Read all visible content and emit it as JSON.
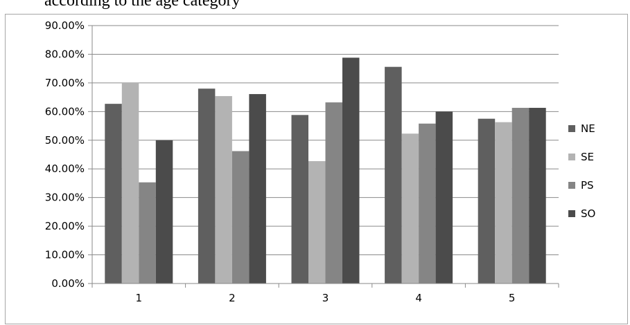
{
  "caption": "according to the age category",
  "chart_data": {
    "type": "bar",
    "categories": [
      "1",
      "2",
      "3",
      "4",
      "5"
    ],
    "series": [
      {
        "name": "NE",
        "color": "#5f5f5f",
        "values": [
          62.7,
          68.0,
          58.8,
          75.6,
          57.5
        ]
      },
      {
        "name": "SE",
        "color": "#b3b3b3",
        "values": [
          70.0,
          65.4,
          42.7,
          52.3,
          56.3
        ]
      },
      {
        "name": "PS",
        "color": "#858585",
        "values": [
          35.3,
          46.2,
          63.2,
          55.8,
          61.3
        ]
      },
      {
        "name": "SO",
        "color": "#4b4b4b",
        "values": [
          50.0,
          66.1,
          78.8,
          60.0,
          61.3
        ]
      }
    ],
    "ylim": [
      0,
      90
    ],
    "yticks": [
      "0.00%",
      "10.00%",
      "20.00%",
      "30.00%",
      "40.00%",
      "50.00%",
      "60.00%",
      "70.00%",
      "80.00%",
      "90.00%"
    ],
    "grid": true,
    "legend": "right",
    "title": "",
    "xlabel": "",
    "ylabel": ""
  }
}
